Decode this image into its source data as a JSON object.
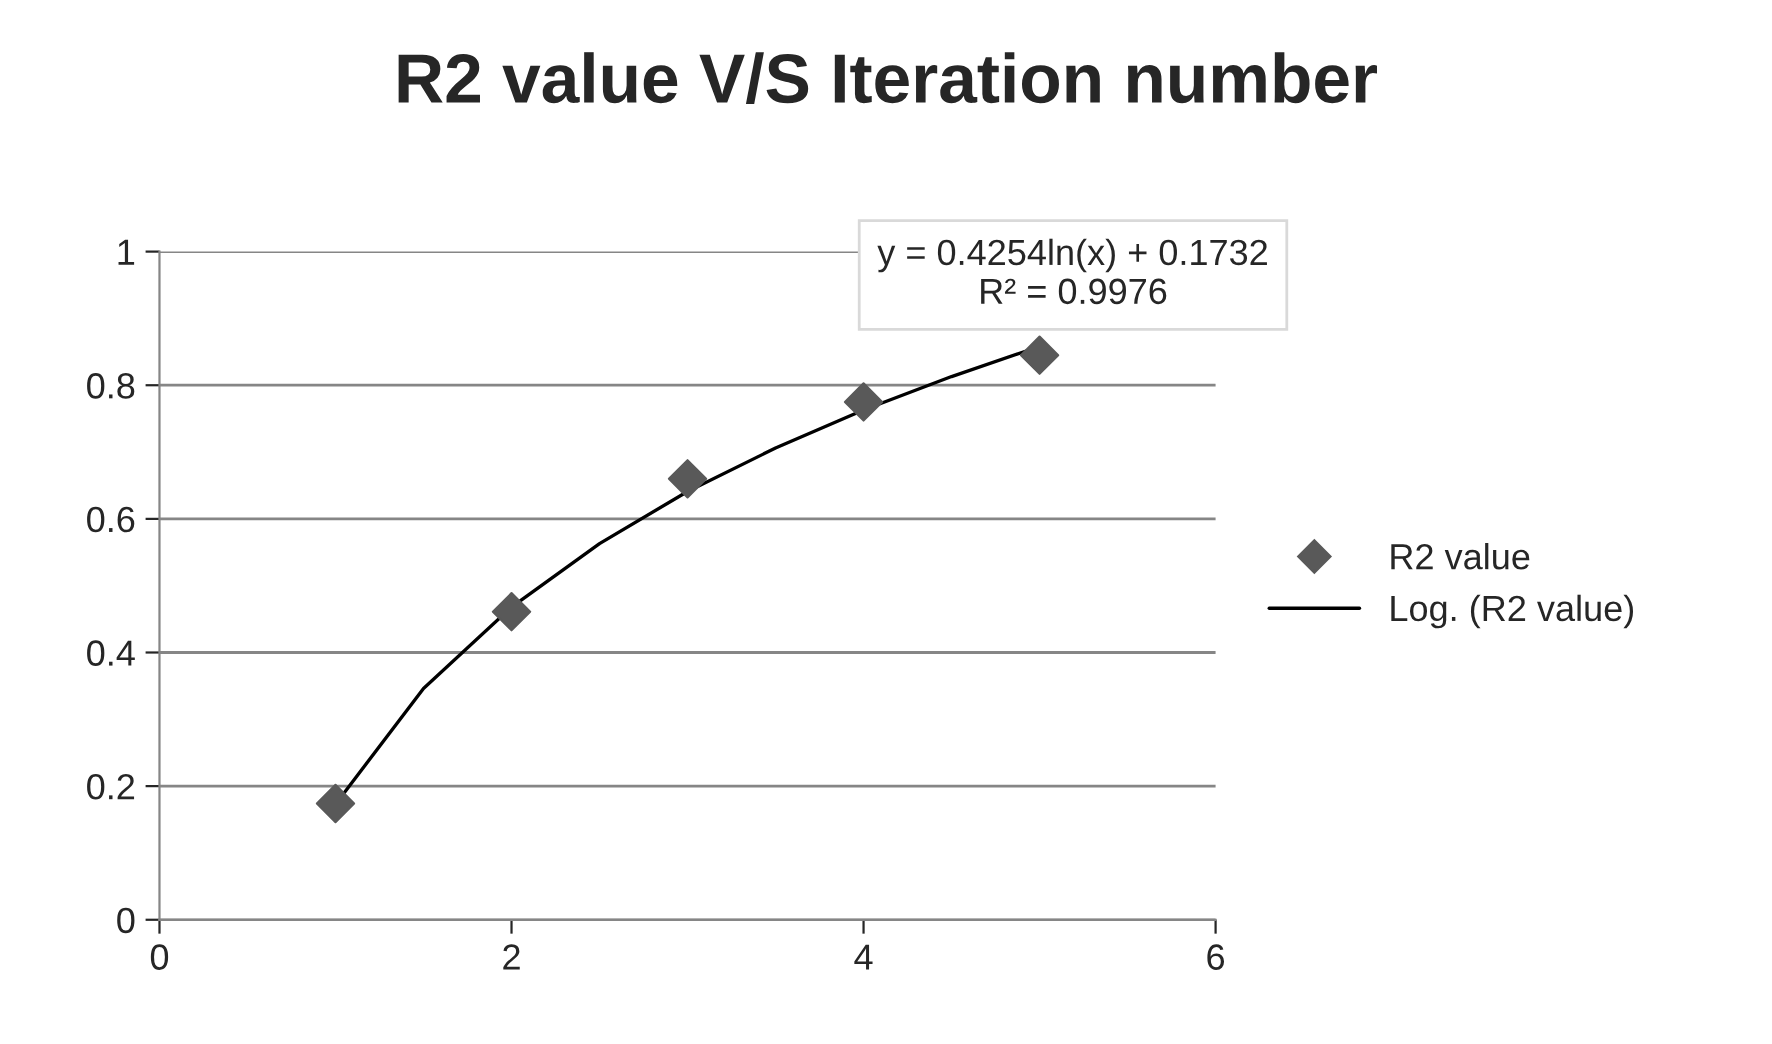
{
  "chart_data": {
    "type": "scatter",
    "title": "R2 value V/S Iteration number",
    "series": [
      {
        "name": "R2 value",
        "color": "#595959",
        "x": [
          1,
          2,
          3,
          4,
          5
        ],
        "values": [
          0.174,
          0.461,
          0.66,
          0.775,
          0.845
        ],
        "marker": "diamond"
      },
      {
        "name": "Log. (R2 value)",
        "type": "line",
        "color": "#000000",
        "x": [
          1,
          1.5,
          2,
          2.5,
          3,
          3.5,
          4,
          4.5,
          5
        ],
        "values": [
          0.173,
          0.346,
          0.468,
          0.563,
          0.641,
          0.706,
          0.763,
          0.813,
          0.858
        ],
        "marker": "none",
        "line_style": "solid"
      }
    ],
    "annotations": [
      "y = 0.4254ln(x) + 0.1732\nR² = 0.9976"
    ],
    "xlim": [
      0,
      6
    ],
    "xticks": [
      0,
      2,
      4,
      6
    ],
    "ylim": [
      0,
      1
    ],
    "yticks": [
      0,
      0.2,
      0.4,
      0.6,
      0.8,
      1
    ],
    "grid": "y",
    "legend": "right"
  }
}
